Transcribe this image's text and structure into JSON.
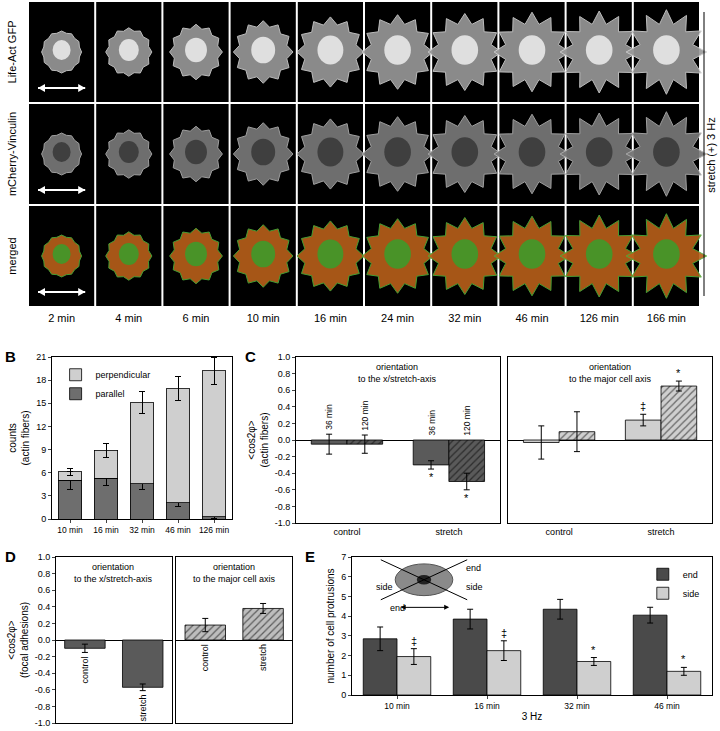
{
  "panel_a": {
    "panel": "A",
    "rows": [
      "Life-Act GFP",
      "mCherry-Vinculin",
      "merged"
    ],
    "times": [
      "2 min",
      "4 min",
      "6 min",
      "10 min",
      "16 min",
      "24 min",
      "32 min",
      "46 min",
      "126 min",
      "166 min"
    ],
    "condition": "stretch (+) 3 Hz"
  },
  "chart_data": [
    {
      "panel": "B",
      "type": "bar",
      "stacked": true,
      "categories": [
        "10 min",
        "16 min",
        "32 min",
        "46 min",
        "126 min"
      ],
      "series": [
        {
          "name": "parallel",
          "color": "#6e6e6e",
          "values": [
            5.0,
            5.3,
            4.6,
            2.1,
            0.3
          ],
          "errors": [
            1.2,
            0.9,
            0.8,
            0.5,
            0.2
          ]
        },
        {
          "name": "perpendicular",
          "color": "#cfcfcf",
          "values": [
            1.1,
            3.6,
            10.5,
            14.8,
            18.9
          ],
          "errors": [
            0.5,
            0.9,
            1.4,
            1.6,
            1.8
          ]
        }
      ],
      "ylabel": [
        "counts",
        "(actin fibers)"
      ],
      "ylim": [
        0,
        21
      ],
      "yticks": [
        0,
        3,
        6,
        9,
        12,
        15,
        18,
        21
      ],
      "legend": "top-left"
    },
    {
      "panel": "C",
      "type": "bar",
      "ylabel": [
        "<cos2φ>",
        "(actin fibers)"
      ],
      "ylim": [
        -1,
        1
      ],
      "yticks": [
        {
          "value": -1,
          "label": "-1.0"
        },
        -0.8,
        -0.6,
        -0.4,
        -0.2,
        {
          "value": 0,
          "label": "0.0"
        },
        0.2,
        0.4,
        0.6,
        0.8,
        {
          "value": 1,
          "label": "1.0"
        }
      ],
      "subplots": [
        {
          "title": [
            "orientation",
            "to the x/stretch-axis"
          ],
          "categories": [
            "control",
            "stretch"
          ],
          "series": [
            {
              "name": "36 min",
              "color": "#5a5a5a",
              "marker": "solid",
              "values": [
                -0.05,
                -0.3
              ],
              "errors": [
                0.12,
                0.05
              ],
              "significance": [
                null,
                "*"
              ]
            },
            {
              "name": "120 min",
              "color": "#5a5a5a",
              "marker": "hatched",
              "values": [
                -0.05,
                -0.5
              ],
              "errors": [
                0.11,
                0.1
              ],
              "significance": [
                null,
                "*"
              ]
            }
          ]
        },
        {
          "title": [
            "orientation",
            "to the major cell axis"
          ],
          "categories": [
            "control",
            "stretch"
          ],
          "series": [
            {
              "color": "#cfcfcf",
              "marker": "solid",
              "values": [
                -0.03,
                0.24
              ],
              "errors": [
                0.2,
                0.07
              ],
              "significance": [
                null,
                "‡"
              ]
            },
            {
              "color": "#cfcfcf",
              "marker": "hatched",
              "values": [
                0.1,
                0.65
              ],
              "errors": [
                0.24,
                0.06
              ],
              "significance": [
                null,
                "*"
              ]
            }
          ]
        }
      ]
    },
    {
      "panel": "D",
      "type": "bar",
      "ylabel": [
        "<cos2φ>",
        "(focal adhesions)"
      ],
      "ylim": [
        -1,
        1
      ],
      "tick_labels": "y",
      "yticks": [
        {
          "value": -1,
          "label": "-1.0"
        },
        -0.8,
        -0.6,
        -0.4,
        -0.2,
        {
          "value": 0,
          "label": "0.0"
        },
        0.2,
        0.4,
        0.6,
        0.8,
        {
          "value": 1,
          "label": "1.0"
        }
      ],
      "subplots": [
        {
          "title": [
            "orientation",
            "to the x/stretch-axis"
          ],
          "categories": [
            "control",
            "stretch"
          ],
          "series": [
            {
              "color": "#5a5a5a",
              "marker": "solid",
              "values": [
                -0.1,
                -0.57
              ],
              "errors": [
                0.05,
                0.04
              ]
            }
          ]
        },
        {
          "title": [
            "orientation",
            "to the major cell axis"
          ],
          "categories": [
            "control",
            "stretch"
          ],
          "series": [
            {
              "color": "#bdbdbd",
              "marker": "hatched",
              "values": [
                0.18,
                0.38
              ],
              "errors": [
                0.08,
                0.06
              ]
            }
          ]
        }
      ]
    },
    {
      "panel": "E",
      "type": "bar",
      "categories": [
        "10 min",
        "16 min",
        "32 min",
        "46 min"
      ],
      "series": [
        {
          "name": "end",
          "color": "#4a4a4a",
          "values": [
            2.85,
            3.85,
            4.35,
            4.05
          ],
          "errors": [
            0.6,
            0.5,
            0.5,
            0.4
          ]
        },
        {
          "name": "side",
          "color": "#cfcfcf",
          "values": [
            1.95,
            2.25,
            1.7,
            1.2
          ],
          "errors": [
            0.4,
            0.5,
            0.2,
            0.2
          ],
          "significance": [
            "‡",
            "‡",
            "*",
            "*"
          ]
        }
      ],
      "xlabel": "3 Hz",
      "ylabel": [
        "number of cell protrusions"
      ],
      "ylim": [
        0,
        7
      ],
      "yticks": [
        0,
        1,
        2,
        3,
        4,
        5,
        6,
        7
      ],
      "legend": "top-right",
      "annotations": [
        "end",
        "side",
        "side",
        "end"
      ]
    }
  ]
}
